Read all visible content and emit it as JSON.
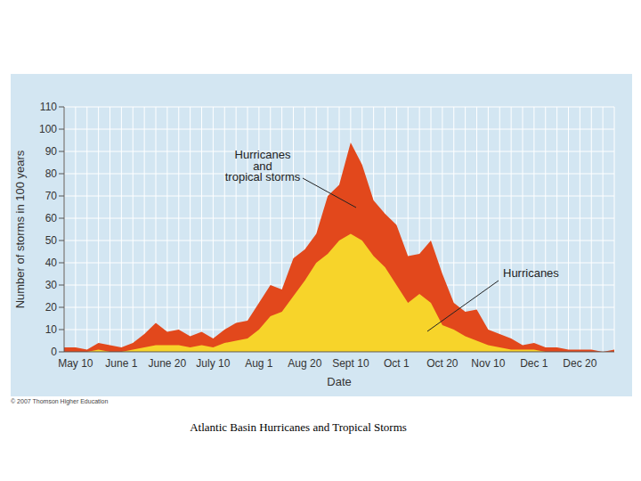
{
  "chart_data": {
    "type": "area",
    "title": "Atlantic Basin Hurricanes and Tropical Storms",
    "note": "© 2007 Thomson Higher Education",
    "x_label": "Date",
    "y_label": "Number of storms in 100 years",
    "categories": [
      null,
      "May 10",
      null,
      null,
      null,
      "June 1",
      null,
      null,
      null,
      "June 20",
      null,
      null,
      null,
      "July 10",
      null,
      null,
      null,
      "Aug 1",
      null,
      null,
      null,
      "Aug 20",
      null,
      null,
      null,
      "Sept 10",
      null,
      null,
      null,
      "Oct 1",
      null,
      null,
      null,
      "Oct 20",
      null,
      null,
      null,
      "Nov 10",
      null,
      null,
      null,
      "Dec 1",
      null,
      null,
      null,
      "Dec 20",
      null,
      null,
      null
    ],
    "series": [
      {
        "name": "Hurricanes\nand\ntropical storms",
        "color": "#e2481c",
        "values": [
          2,
          2,
          1,
          4,
          3,
          2,
          4,
          8,
          13,
          9,
          10,
          7,
          9,
          6,
          10,
          13,
          14,
          22,
          30,
          28,
          42,
          46,
          53,
          70,
          75,
          94,
          84,
          68,
          62,
          57,
          43,
          44,
          50,
          35,
          22,
          18,
          19,
          10,
          8,
          6,
          3,
          4,
          2,
          2,
          1,
          1,
          1,
          0,
          1
        ]
      },
      {
        "name": "Hurricanes",
        "color": "#f7d42a",
        "values": [
          0,
          0,
          0,
          1,
          0,
          0,
          1,
          2,
          3,
          3,
          3,
          2,
          3,
          2,
          4,
          5,
          6,
          10,
          16,
          18,
          25,
          32,
          40,
          44,
          50,
          53,
          50,
          43,
          38,
          30,
          22,
          26,
          22,
          12,
          10,
          7,
          5,
          3,
          2,
          1,
          1,
          1,
          0,
          0,
          0,
          0,
          0,
          0,
          0
        ]
      }
    ],
    "ylim": [
      0,
      110
    ],
    "yticks": [
      0,
      10,
      20,
      30,
      40,
      50,
      60,
      70,
      80,
      90,
      100,
      110
    ],
    "grid": true
  }
}
